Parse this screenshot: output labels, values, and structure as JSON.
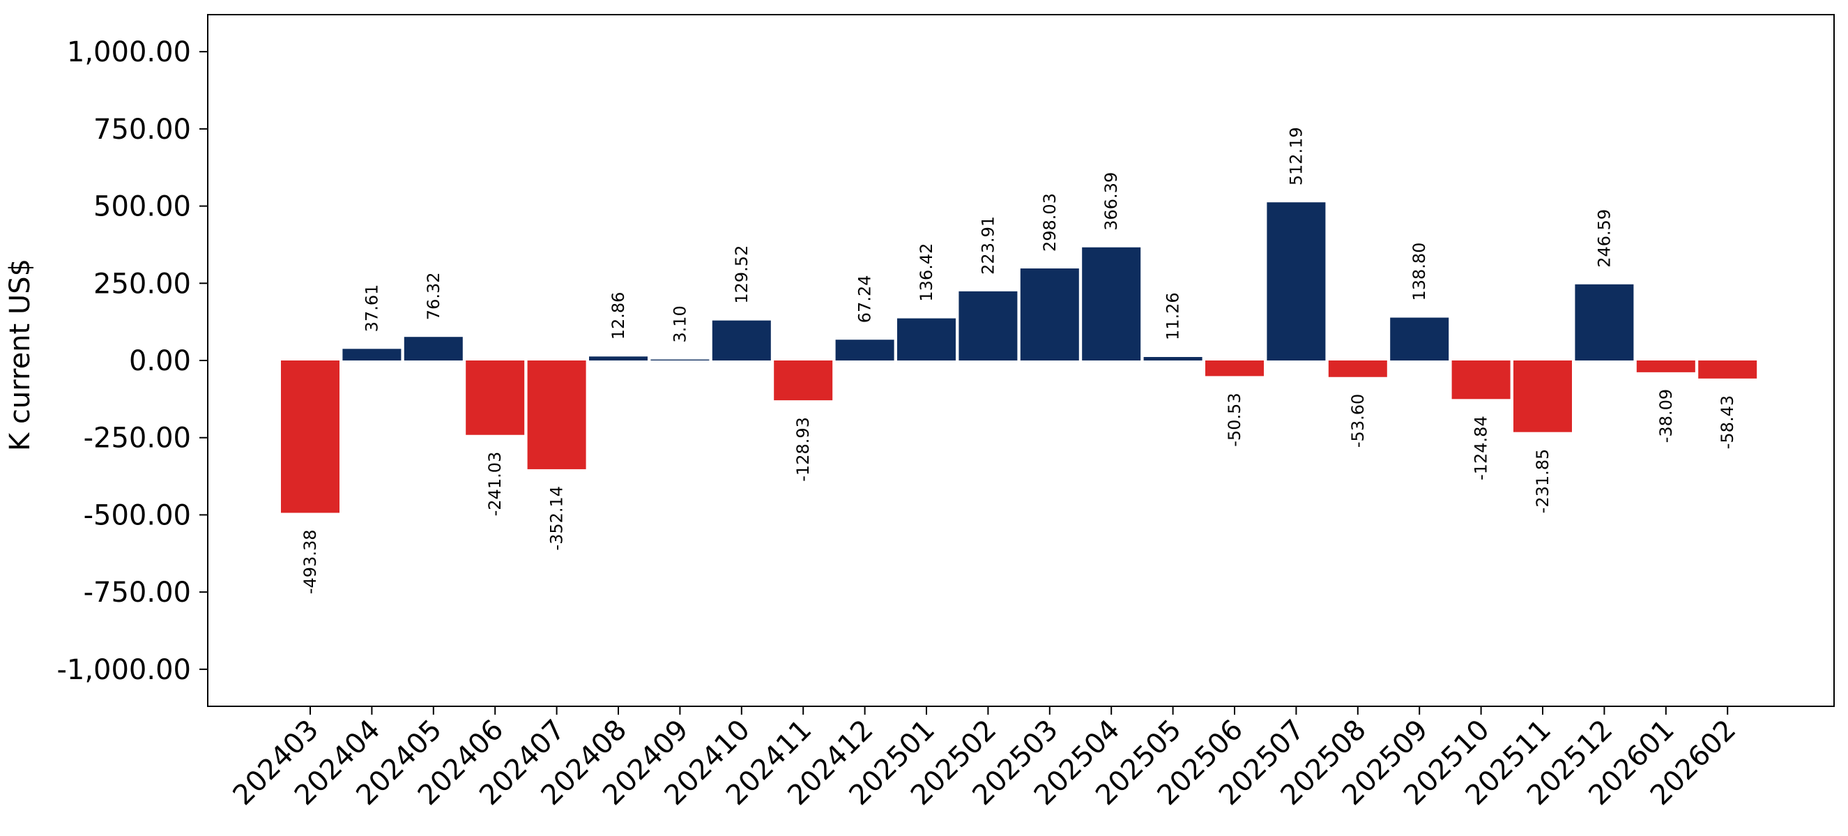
{
  "chart_data": {
    "type": "bar",
    "title": "",
    "xlabel": "",
    "ylabel": "K current US$",
    "ylim": [
      -1120,
      1120
    ],
    "yticks": [
      -1000,
      -750,
      -500,
      -250,
      0,
      250,
      500,
      750,
      1000
    ],
    "ytick_labels": [
      "-1,000.00",
      "-750.00",
      "-500.00",
      "-250.00",
      "0.00",
      "250.00",
      "500.00",
      "750.00",
      "1,000.00"
    ],
    "grid": false,
    "legend": "none",
    "categories": [
      "202403",
      "202404",
      "202405",
      "202406",
      "202407",
      "202408",
      "202409",
      "202410",
      "202411",
      "202412",
      "202501",
      "202502",
      "202503",
      "202504",
      "202505",
      "202506",
      "202507",
      "202508",
      "202509",
      "202510",
      "202511",
      "202512",
      "202601",
      "202602"
    ],
    "values": [
      -493.38,
      37.61,
      76.32,
      -241.03,
      -352.14,
      12.86,
      3.1,
      129.52,
      -128.93,
      67.24,
      136.42,
      223.91,
      298.03,
      366.39,
      11.26,
      -50.53,
      512.19,
      -53.6,
      138.8,
      -124.84,
      -231.85,
      246.59,
      -38.09,
      -58.43
    ],
    "value_labels": [
      "-493.38",
      "37.61",
      "76.32",
      "-241.03",
      "-352.14",
      "12.86",
      "3.10",
      "129.52",
      "-128.93",
      "67.24",
      "136.42",
      "223.91",
      "298.03",
      "366.39",
      "11.26",
      "-50.53",
      "512.19",
      "-53.60",
      "138.80",
      "-124.84",
      "-231.85",
      "246.59",
      "-38.09",
      "-58.43"
    ],
    "colors": {
      "positive": "#0e2d5e",
      "negative": "#dc2626"
    }
  }
}
